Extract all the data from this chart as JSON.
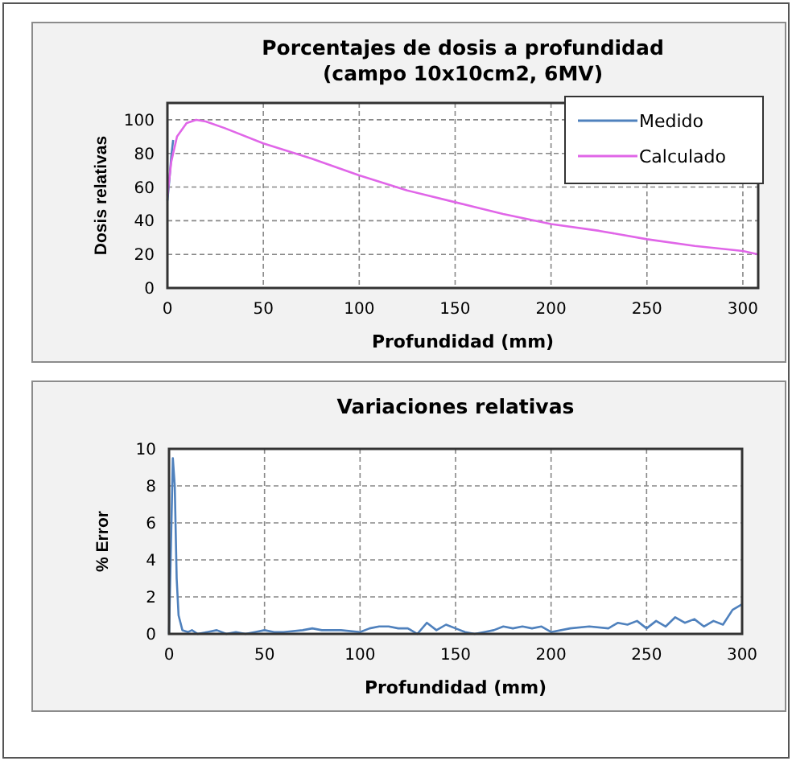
{
  "chart_data": [
    {
      "type": "line",
      "title": "Porcentajes de dosis a profundidad\n(campo 10x10cm2, 6MV)",
      "xlabel": "Profundidad (mm)",
      "ylabel": "Dosis relativas",
      "xlim": [
        0,
        308
      ],
      "xticks": [
        0,
        50,
        100,
        150,
        200,
        250,
        300
      ],
      "ylim": [
        0,
        110
      ],
      "yticks": [
        0,
        20,
        40,
        60,
        80,
        100
      ],
      "grid": true,
      "legend": "top right",
      "line_style": "solid",
      "series": [
        {
          "name": "Medido",
          "color": "#4f81bd",
          "x": [
            0,
            1,
            2,
            3
          ],
          "values": [
            52,
            64,
            78,
            88
          ]
        },
        {
          "name": "Calculado",
          "color": "#e066e8",
          "x": [
            0,
            2,
            5,
            10,
            15,
            20,
            30,
            50,
            75,
            100,
            125,
            150,
            175,
            200,
            225,
            250,
            275,
            300,
            308
          ],
          "values": [
            55,
            75,
            90,
            98,
            100,
            99,
            95,
            86,
            77,
            67,
            58,
            51,
            44,
            38,
            34,
            29,
            25,
            22,
            20
          ]
        }
      ]
    },
    {
      "type": "line",
      "title": "Variaciones relativas",
      "xlabel": "Profundidad (mm)",
      "ylabel": "% Error",
      "xlim": [
        0,
        300
      ],
      "xticks": [
        0,
        50,
        100,
        150,
        200,
        250,
        300
      ],
      "ylim": [
        0,
        10
      ],
      "yticks": [
        0,
        2,
        4,
        6,
        8,
        10
      ],
      "grid": true,
      "line_style": "solid",
      "series": [
        {
          "color": "#4f81bd",
          "x": [
            0,
            2,
            3,
            4,
            5,
            7,
            10,
            12,
            15,
            20,
            25,
            30,
            35,
            40,
            45,
            50,
            55,
            60,
            70,
            75,
            80,
            90,
            100,
            105,
            110,
            115,
            120,
            125,
            130,
            135,
            140,
            145,
            150,
            155,
            160,
            165,
            170,
            175,
            180,
            185,
            190,
            195,
            200,
            210,
            220,
            230,
            235,
            240,
            245,
            250,
            255,
            260,
            265,
            270,
            275,
            280,
            285,
            290,
            295,
            300
          ],
          "values": [
            0,
            9.5,
            8,
            3,
            1,
            0.2,
            0.1,
            0.2,
            0,
            0.1,
            0.2,
            0,
            0.1,
            0,
            0.1,
            0.2,
            0.1,
            0.1,
            0.2,
            0.3,
            0.2,
            0.2,
            0.1,
            0.3,
            0.4,
            0.4,
            0.3,
            0.3,
            0,
            0.6,
            0.2,
            0.5,
            0.3,
            0.1,
            0,
            0.1,
            0.2,
            0.4,
            0.3,
            0.4,
            0.3,
            0.4,
            0.1,
            0.3,
            0.4,
            0.3,
            0.6,
            0.5,
            0.7,
            0.3,
            0.7,
            0.4,
            0.9,
            0.6,
            0.8,
            0.4,
            0.7,
            0.5,
            1.3,
            1.6
          ]
        }
      ]
    }
  ]
}
